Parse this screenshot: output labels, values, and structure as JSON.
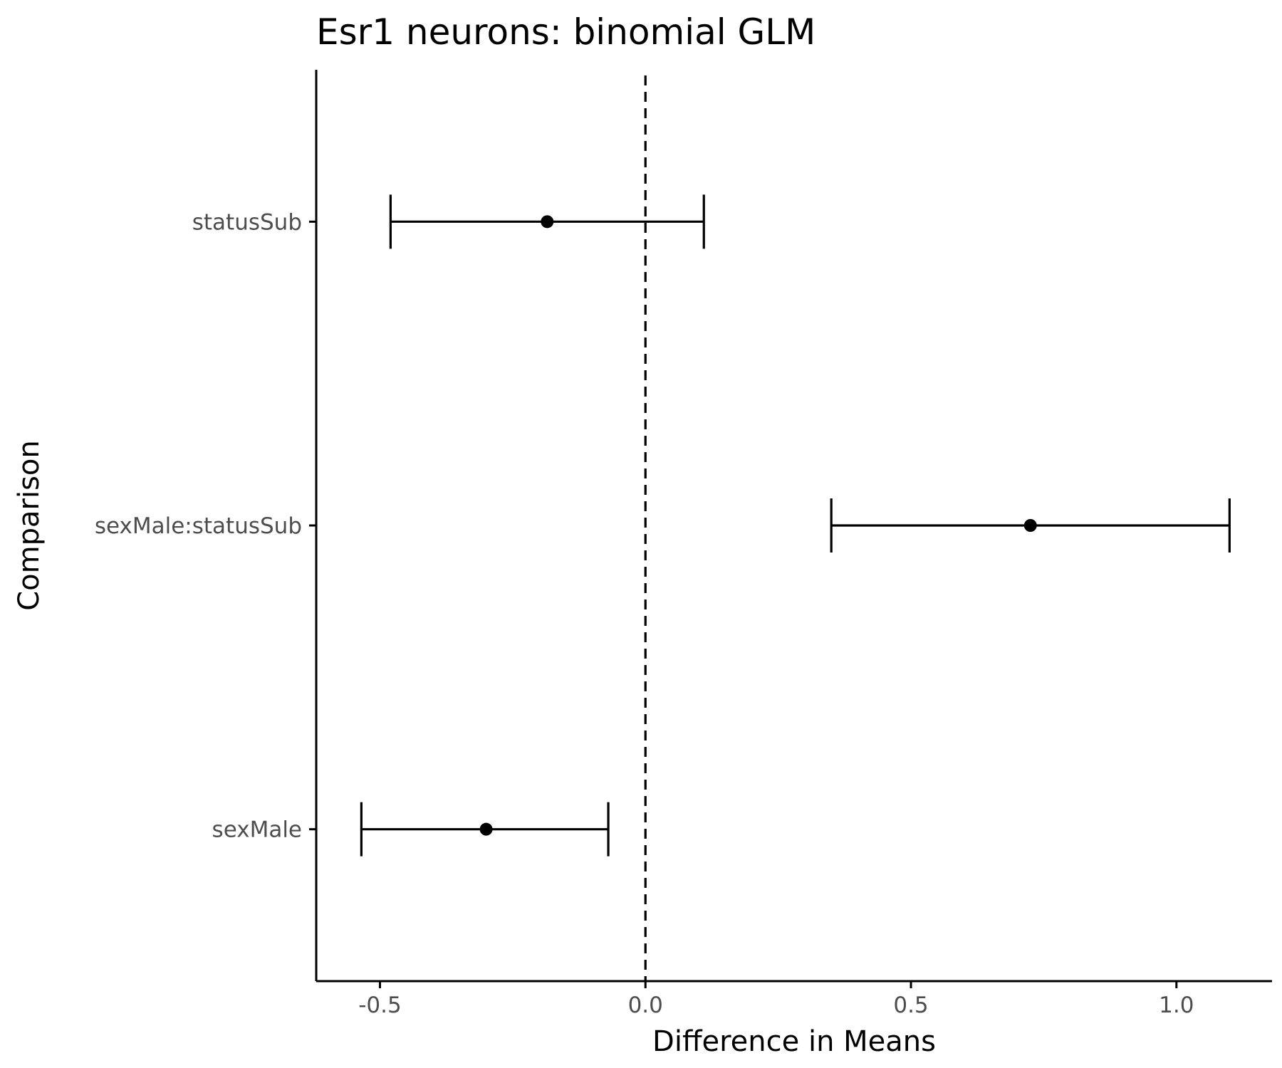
{
  "chart_data": {
    "type": "scatter",
    "title": "Esr1 neurons: binomial GLM",
    "xlabel": "Difference in Means",
    "ylabel": "Comparison",
    "xlim": [
      -0.62,
      1.18
    ],
    "x_ticks": [
      -0.5,
      0.0,
      0.5,
      1.0
    ],
    "x_tick_labels": [
      "-0.5",
      "0.0",
      "0.5",
      "1.0"
    ],
    "reference_line": {
      "x": 0.0,
      "style": "dashed"
    },
    "grid": false,
    "categories": [
      "statusSub",
      "sexMale:statusSub",
      "sexMale"
    ],
    "points": [
      {
        "label": "statusSub",
        "estimate": -0.185,
        "lower": -0.48,
        "upper": 0.11
      },
      {
        "label": "sexMale:statusSub",
        "estimate": 0.725,
        "lower": 0.35,
        "upper": 1.1
      },
      {
        "label": "sexMale",
        "estimate": -0.3,
        "lower": -0.535,
        "upper": -0.07
      }
    ]
  }
}
